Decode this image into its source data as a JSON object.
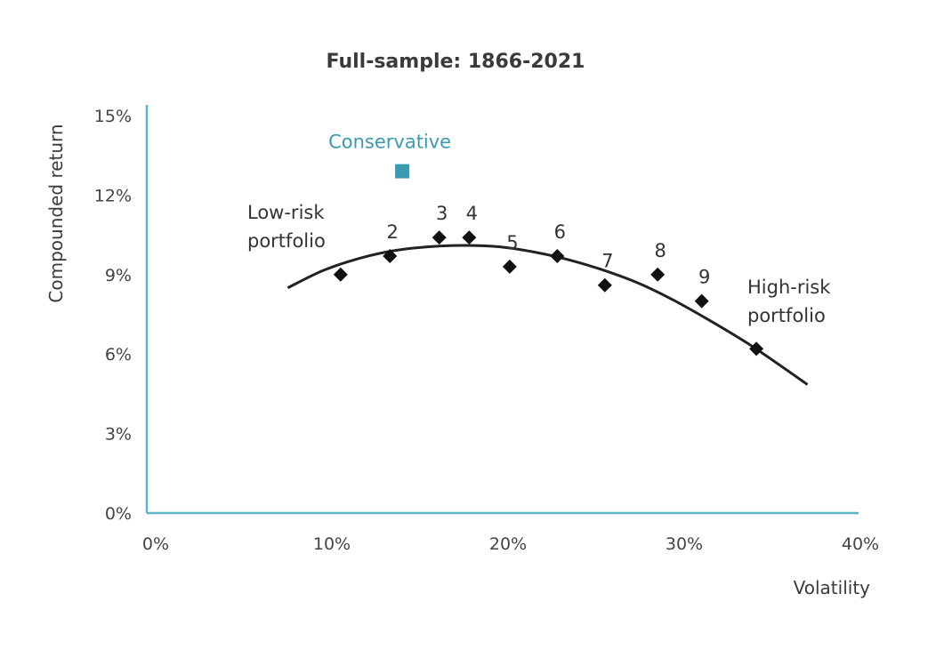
{
  "chart_data": {
    "type": "scatter",
    "title": "Full-sample: 1866-2021",
    "xlabel": "Volatility",
    "ylabel": "Compounded return",
    "xlim": [
      0,
      40
    ],
    "ylim": [
      0,
      15
    ],
    "x_ticks": [
      "0%",
      "10%",
      "20%",
      "30%",
      "40%"
    ],
    "y_ticks": [
      "0%",
      "3%",
      "6%",
      "9%",
      "12%",
      "15%"
    ],
    "grid": false,
    "colors": {
      "axis": "#5fb3c4",
      "points": "#111111",
      "curve": "#222222",
      "conservative": "#3a9bb0"
    },
    "points": [
      {
        "x": 11.0,
        "y": 9.0,
        "label": ""
      },
      {
        "x": 13.8,
        "y": 9.7,
        "label": "2"
      },
      {
        "x": 16.6,
        "y": 10.4,
        "label": "3"
      },
      {
        "x": 18.3,
        "y": 10.4,
        "label": "4"
      },
      {
        "x": 20.6,
        "y": 9.3,
        "label": "5"
      },
      {
        "x": 23.3,
        "y": 9.7,
        "label": "6"
      },
      {
        "x": 26.0,
        "y": 8.6,
        "label": "7"
      },
      {
        "x": 29.0,
        "y": 9.0,
        "label": "8"
      },
      {
        "x": 31.5,
        "y": 8.0,
        "label": "9"
      },
      {
        "x": 34.6,
        "y": 6.2,
        "label": ""
      }
    ],
    "fit_curve": {
      "x": [
        8,
        10,
        12,
        14,
        16,
        18,
        20,
        22,
        24,
        26,
        28,
        30,
        32,
        34,
        36,
        37.5
      ],
      "y": [
        8.5,
        9.15,
        9.6,
        9.9,
        10.05,
        10.1,
        10.05,
        9.85,
        9.55,
        9.15,
        8.65,
        8.0,
        7.25,
        6.45,
        5.55,
        4.85
      ]
    },
    "conservative": {
      "x": 14.5,
      "y": 12.9,
      "label": "Conservative"
    },
    "annotations": {
      "low_risk": [
        "Low-risk",
        "portfolio"
      ],
      "high_risk": [
        "High-risk",
        "portfolio"
      ]
    }
  }
}
